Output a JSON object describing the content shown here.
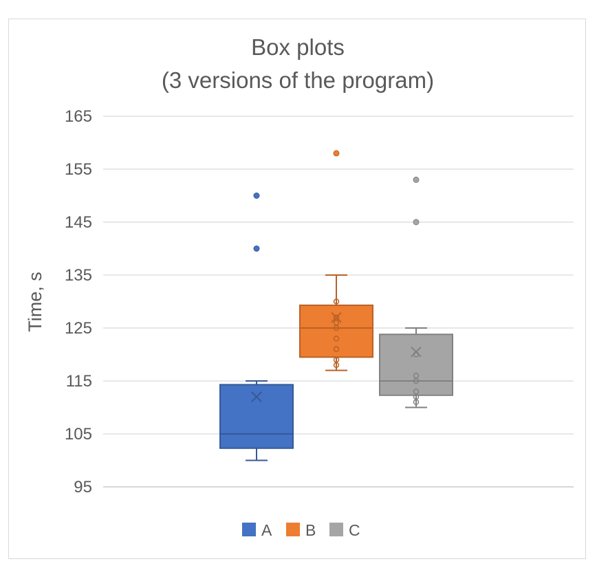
{
  "chart_data": {
    "type": "box",
    "title_lines": [
      "Box plots",
      "(3 versions of the program)"
    ],
    "xlabel": "",
    "ylabel": "Time, s",
    "ylim": [
      95,
      165
    ],
    "yticks": [
      95,
      105,
      115,
      125,
      135,
      145,
      155,
      165
    ],
    "grid": true,
    "legend": {
      "position": "bottom",
      "entries": [
        "A",
        "B",
        "C"
      ]
    },
    "series": [
      {
        "name": "A",
        "color": "#4472C4",
        "whisker_low": 100,
        "q1": 102.3,
        "median": 105,
        "q3": 114.3,
        "whisker_high": 115,
        "mean": 112,
        "inner_points": [],
        "outliers": [
          140,
          150
        ]
      },
      {
        "name": "B",
        "color": "#ED7D31",
        "whisker_low": 117,
        "q1": 119.5,
        "median": 125,
        "q3": 129.3,
        "whisker_high": 135,
        "mean": 127,
        "inner_points": [
          118,
          119,
          121,
          123,
          125,
          126,
          127,
          130
        ],
        "outliers": [
          158
        ]
      },
      {
        "name": "C",
        "color": "#A5A5A5",
        "whisker_low": 110,
        "q1": 112.3,
        "median": 115,
        "q3": 123.8,
        "whisker_high": 125,
        "mean": 120.5,
        "inner_points": [
          111,
          112,
          113,
          115,
          116,
          120
        ],
        "outliers": [
          145,
          153
        ]
      }
    ]
  }
}
